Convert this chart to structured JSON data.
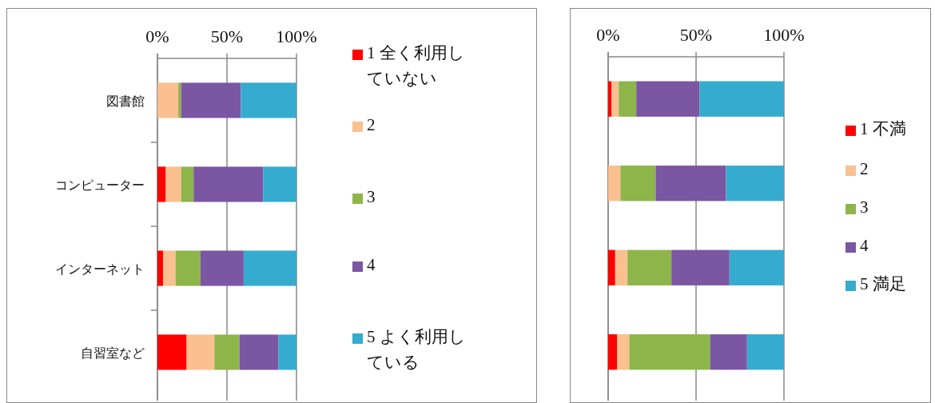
{
  "chart_data": [
    {
      "type": "bar",
      "orientation": "horizontal",
      "stacked": true,
      "categories": [
        "図書館",
        "コンピューター",
        "インターネット",
        "自習室など"
      ],
      "series": [
        {
          "name": "1 全く利用していない",
          "color": "#ff0000",
          "values": [
            0,
            6,
            4,
            21
          ]
        },
        {
          "name": "2",
          "color": "#fac090",
          "values": [
            15,
            11,
            9,
            20
          ]
        },
        {
          "name": "3",
          "color": "#8db54a",
          "values": [
            2,
            9,
            18,
            18
          ]
        },
        {
          "name": "4",
          "color": "#7b56a3",
          "values": [
            43,
            50,
            31,
            28
          ]
        },
        {
          "name": "5 よく利用している",
          "color": "#35abcf",
          "values": [
            40,
            24,
            38,
            13
          ]
        }
      ],
      "xlim": [
        0,
        100
      ],
      "xticks": [
        {
          "value": 0,
          "label": "0%"
        },
        {
          "value": 50,
          "label": "50%"
        },
        {
          "value": 100,
          "label": "100%"
        }
      ],
      "grid": "x",
      "legend": "right"
    },
    {
      "type": "bar",
      "orientation": "horizontal",
      "stacked": true,
      "categories": [
        null,
        null,
        null,
        null
      ],
      "series": [
        {
          "name": "1 不満",
          "color": "#ff0000",
          "values": [
            2,
            0,
            4,
            5
          ]
        },
        {
          "name": "2",
          "color": "#fac090",
          "values": [
            4,
            7,
            7,
            7
          ]
        },
        {
          "name": "3",
          "color": "#8db54a",
          "values": [
            10,
            20,
            25,
            46
          ]
        },
        {
          "name": "4",
          "color": "#7b56a3",
          "values": [
            36,
            40,
            33,
            21
          ]
        },
        {
          "name": "5 満足",
          "color": "#35abcf",
          "values": [
            48,
            33,
            31,
            21
          ]
        }
      ],
      "xlim": [
        0,
        100
      ],
      "xticks": [
        {
          "value": 0,
          "label": "0%"
        },
        {
          "value": 50,
          "label": "50%"
        },
        {
          "value": 100,
          "label": "100%"
        }
      ],
      "grid": "x",
      "legend": "right"
    }
  ]
}
